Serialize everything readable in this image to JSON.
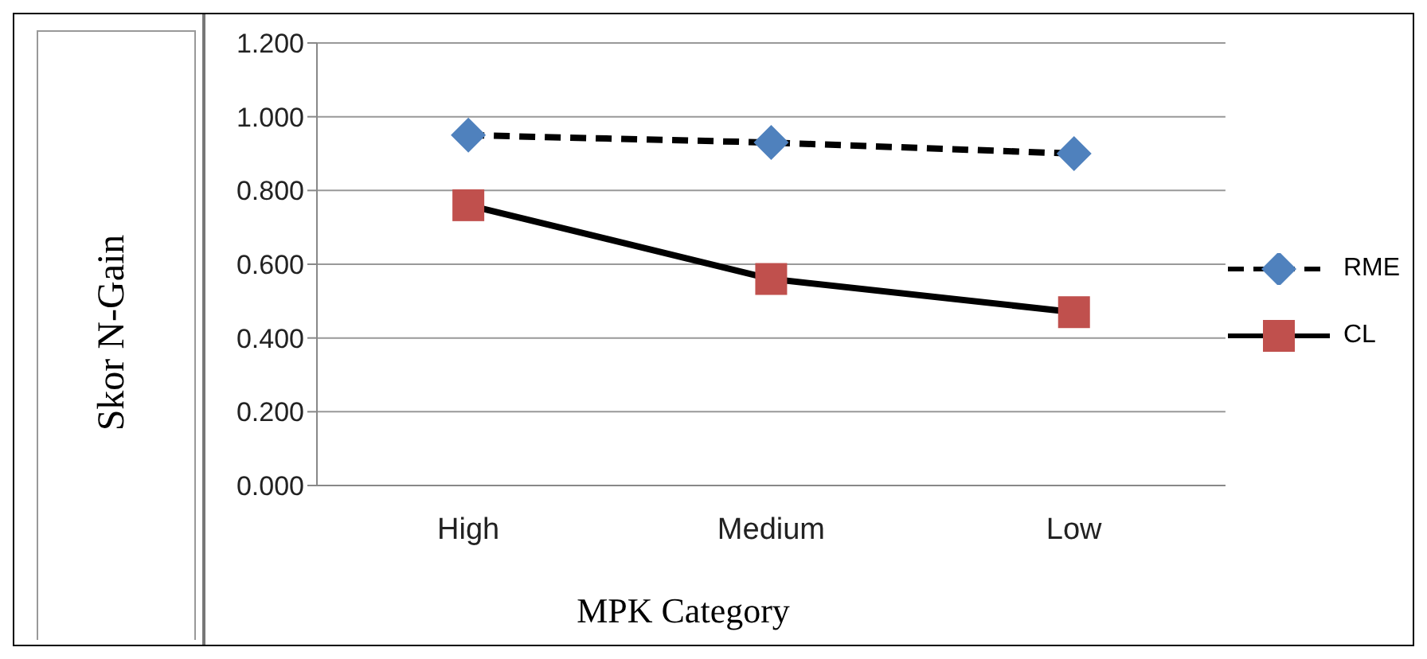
{
  "chart_data": {
    "type": "line",
    "xlabel": "MPK Category",
    "ylabel": "Skor N-Gain",
    "categories": [
      "High",
      "Medium",
      "Low"
    ],
    "series": [
      {
        "name": "RME",
        "color": "#4f81bd",
        "values": [
          0.95,
          0.93,
          0.9
        ],
        "marker": "diamond",
        "line_style": "dashed"
      },
      {
        "name": "CL",
        "color": "#c0504d",
        "values": [
          0.76,
          0.56,
          0.47
        ],
        "marker": "square",
        "line_style": "solid"
      }
    ],
    "ylim": [
      0,
      1.2
    ],
    "yticks": [
      {
        "value": 0,
        "label": "0.000"
      },
      {
        "value": 0.2,
        "label": "0.200"
      },
      {
        "value": 0.4,
        "label": "0.400"
      },
      {
        "value": 0.6,
        "label": "0.600"
      },
      {
        "value": 0.8,
        "label": "0.800"
      },
      {
        "value": 1,
        "label": "1.000"
      },
      {
        "value": 1.2,
        "label": "1.200"
      }
    ],
    "grid": "y",
    "legend": "right"
  }
}
